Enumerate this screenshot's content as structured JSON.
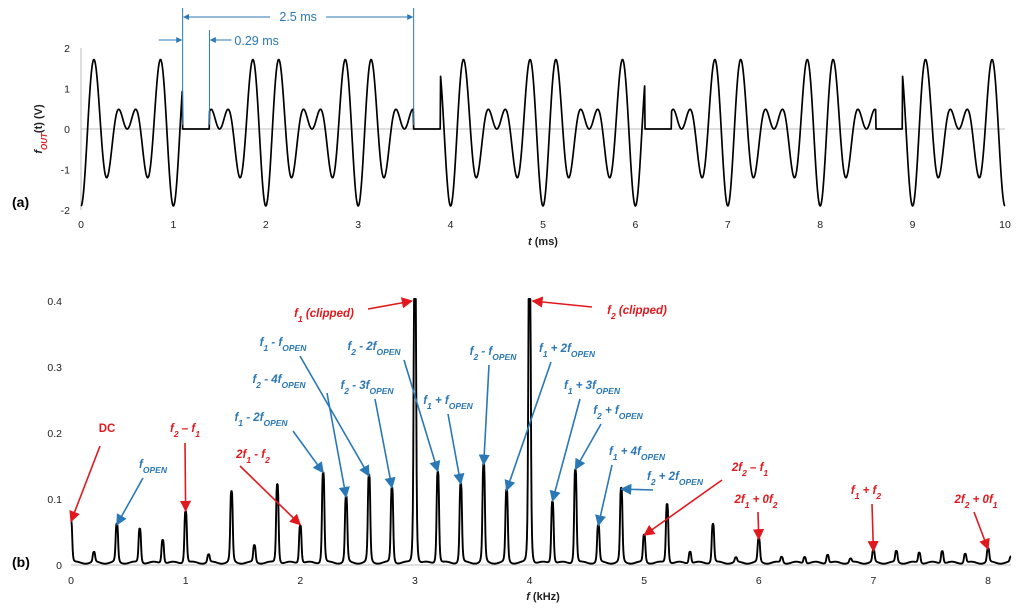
{
  "panel_a_label": "(a)",
  "panel_b_label": "(b)",
  "colors": {
    "trace": "#000000",
    "red_annotation": "#e0191e",
    "blue_annotation": "#2a78b5",
    "axis": "#bfbfbf"
  },
  "chart_data": [
    {
      "type": "line",
      "xlabel": "t (ms)",
      "ylabel": "f_OUT(t) (V)",
      "xlim": [
        0,
        10
      ],
      "ylim": [
        -2,
        2
      ],
      "x_ticks": [
        "0",
        "1",
        "2",
        "3",
        "4",
        "5",
        "6",
        "7",
        "8",
        "9",
        "10"
      ],
      "y_ticks": [
        "-2",
        "-1",
        "0",
        "1",
        "2"
      ],
      "grid": false,
      "signal": {
        "f1_khz": 3,
        "f2_khz": 4,
        "period_ms": 2.5,
        "gate_open_from_ms": 1.1,
        "gate_open_to_ms": 1.39
      },
      "dimensions": [
        {
          "label": "2.5 ms",
          "from_ms": 1.1,
          "to_ms": 3.6
        },
        {
          "label": "0.29 ms",
          "from_ms": 1.1,
          "to_ms": 1.39
        }
      ]
    },
    {
      "type": "line",
      "xlabel": "f (kHz)",
      "xlim": [
        0,
        8.2
      ],
      "ylim": [
        0,
        0.4
      ],
      "x_ticks": [
        "0",
        "1",
        "2",
        "3",
        "4",
        "5",
        "6",
        "7",
        "8"
      ],
      "y_ticks": [
        "0",
        "0.1",
        "0.2",
        "0.3",
        "0.4"
      ],
      "grid": false,
      "peaks": [
        {
          "x": 0.0,
          "y": 0.063
        },
        {
          "x": 0.2,
          "y": 0.015
        },
        {
          "x": 0.4,
          "y": 0.058
        },
        {
          "x": 0.6,
          "y": 0.052
        },
        {
          "x": 0.8,
          "y": 0.036
        },
        {
          "x": 1.0,
          "y": 0.079
        },
        {
          "x": 1.2,
          "y": 0.012
        },
        {
          "x": 1.4,
          "y": 0.107
        },
        {
          "x": 1.6,
          "y": 0.026
        },
        {
          "x": 1.8,
          "y": 0.12
        },
        {
          "x": 2.0,
          "y": 0.058
        },
        {
          "x": 2.2,
          "y": 0.137
        },
        {
          "x": 2.4,
          "y": 0.1
        },
        {
          "x": 2.6,
          "y": 0.132
        },
        {
          "x": 2.8,
          "y": 0.114
        },
        {
          "x": 3.0,
          "y": 0.5
        },
        {
          "x": 3.2,
          "y": 0.139
        },
        {
          "x": 3.4,
          "y": 0.12
        },
        {
          "x": 3.6,
          "y": 0.149
        },
        {
          "x": 3.8,
          "y": 0.11
        },
        {
          "x": 4.0,
          "y": 0.5
        },
        {
          "x": 4.2,
          "y": 0.094
        },
        {
          "x": 4.4,
          "y": 0.142
        },
        {
          "x": 4.6,
          "y": 0.057
        },
        {
          "x": 4.8,
          "y": 0.112
        },
        {
          "x": 5.0,
          "y": 0.042
        },
        {
          "x": 5.2,
          "y": 0.09
        },
        {
          "x": 5.4,
          "y": 0.018
        },
        {
          "x": 5.6,
          "y": 0.059
        },
        {
          "x": 5.8,
          "y": 0.007
        },
        {
          "x": 6.0,
          "y": 0.036
        },
        {
          "x": 6.2,
          "y": 0.009
        },
        {
          "x": 6.4,
          "y": 0.01
        },
        {
          "x": 6.6,
          "y": 0.013
        },
        {
          "x": 6.8,
          "y": 0.006
        },
        {
          "x": 7.0,
          "y": 0.018
        },
        {
          "x": 7.2,
          "y": 0.017
        },
        {
          "x": 7.4,
          "y": 0.016
        },
        {
          "x": 7.6,
          "y": 0.019
        },
        {
          "x": 7.8,
          "y": 0.014
        },
        {
          "x": 8.0,
          "y": 0.021
        },
        {
          "x": 8.2,
          "y": 0.008
        }
      ],
      "annotations": [
        {
          "color": "red",
          "base": "DC",
          "sub": "",
          "rest": "",
          "target_x": 0.0,
          "target_y": 0.063
        },
        {
          "color": "blue",
          "base": "f",
          "sub": "OPEN",
          "rest": "",
          "target_x": 0.4,
          "target_y": 0.058
        },
        {
          "color": "red",
          "base": "f",
          "sub": "2",
          "rest": " – f",
          "sub2": "1",
          "target_x": 1.0,
          "target_y": 0.079
        },
        {
          "color": "red",
          "base": "2f",
          "sub": "1",
          "rest": " - f",
          "sub2": "2",
          "target_x": 2.0,
          "target_y": 0.058
        },
        {
          "color": "blue",
          "base": "f",
          "sub": "1",
          "rest": " - 2f",
          "sub2": "OPEN",
          "target_x": 2.2,
          "target_y": 0.137
        },
        {
          "color": "blue",
          "base": "f",
          "sub": "2",
          "rest": " - 4f",
          "sub2": "OPEN",
          "target_x": 2.4,
          "target_y": 0.1
        },
        {
          "color": "blue",
          "base": "f",
          "sub": "1",
          "rest": " - f",
          "sub2": "OPEN",
          "target_x": 2.6,
          "target_y": 0.132
        },
        {
          "color": "blue",
          "base": "f",
          "sub": "2",
          "rest": " - 3f",
          "sub2": "OPEN",
          "target_x": 2.8,
          "target_y": 0.114
        },
        {
          "color": "blue",
          "base": "f",
          "sub": "2",
          "rest": " - 2f",
          "sub2": "OPEN",
          "target_x": 3.2,
          "target_y": 0.139
        },
        {
          "color": "blue",
          "base": "f",
          "sub": "1",
          "rest": " + f",
          "sub2": "OPEN",
          "target_x": 3.4,
          "target_y": 0.12
        },
        {
          "color": "blue",
          "base": "f",
          "sub": "2",
          "rest": " - f",
          "sub2": "OPEN",
          "target_x": 3.6,
          "target_y": 0.149
        },
        {
          "color": "blue",
          "base": "f",
          "sub": "1",
          "rest": " + 2f",
          "sub2": "OPEN",
          "target_x": 3.8,
          "target_y": 0.11
        },
        {
          "color": "blue",
          "base": "f",
          "sub": "1",
          "rest": " + 3f",
          "sub2": "OPEN",
          "target_x": 4.2,
          "target_y": 0.094
        },
        {
          "color": "blue",
          "base": "f",
          "sub": "2",
          "rest": " + f",
          "sub2": "OPEN",
          "target_x": 4.4,
          "target_y": 0.142
        },
        {
          "color": "blue",
          "base": "f",
          "sub": "1",
          "rest": " + 4f",
          "sub2": "OPEN",
          "target_x": 4.6,
          "target_y": 0.057
        },
        {
          "color": "blue",
          "base": "f",
          "sub": "2",
          "rest": " + 2f",
          "sub2": "OPEN",
          "target_x": 4.8,
          "target_y": 0.112
        },
        {
          "color": "red",
          "base": "2f",
          "sub": "2",
          "rest": " – f",
          "sub2": "1",
          "target_x": 5.0,
          "target_y": 0.042
        },
        {
          "color": "red",
          "base": "2f",
          "sub": "1",
          "rest": " + 0f",
          "sub2": "2",
          "target_x": 6.0,
          "target_y": 0.036
        },
        {
          "color": "red",
          "base": "f",
          "sub": "1",
          "rest": " + f",
          "sub2": "2",
          "target_x": 7.0,
          "target_y": 0.018
        },
        {
          "color": "red",
          "base": "2f",
          "sub": "2",
          "rest": " + 0f",
          "sub2": "1",
          "target_x": 8.0,
          "target_y": 0.021
        },
        {
          "color": "red",
          "base": "f",
          "sub": "1",
          "rest": " (clipped)",
          "sub2": "",
          "target_x": 3.0,
          "target_y": 0.4
        },
        {
          "color": "red",
          "base": "f",
          "sub": "2",
          "rest": " (clipped)",
          "sub2": "",
          "target_x": 4.0,
          "target_y": 0.4
        }
      ]
    }
  ]
}
